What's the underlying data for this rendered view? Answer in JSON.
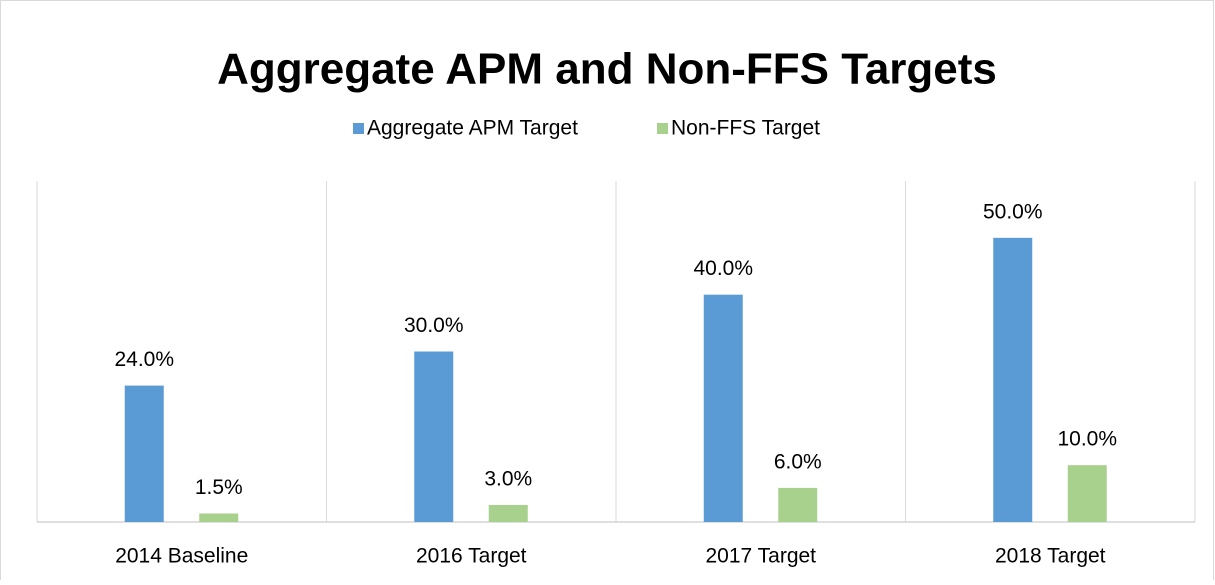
{
  "chart_data": {
    "type": "bar",
    "title": "Aggregate APM and Non-FFS Targets",
    "categories": [
      "2014 Baseline",
      "2016 Target",
      "2017 Target",
      "2018 Target"
    ],
    "series": [
      {
        "name": "Aggregate APM Target",
        "color": "#5b9bd5",
        "values": [
          24,
          30,
          40,
          50
        ],
        "value_labels": [
          "24.0%",
          "30.0%",
          "40.0%",
          "50.0%"
        ]
      },
      {
        "name": "Non-FFS Target",
        "color": "#a9d18e",
        "values": [
          1.5,
          3,
          6,
          10
        ],
        "value_labels": [
          "1.5%",
          "3.0%",
          "6.0%",
          "10.0%"
        ]
      }
    ],
    "ylim": [
      0,
      60
    ],
    "legend": "top"
  }
}
